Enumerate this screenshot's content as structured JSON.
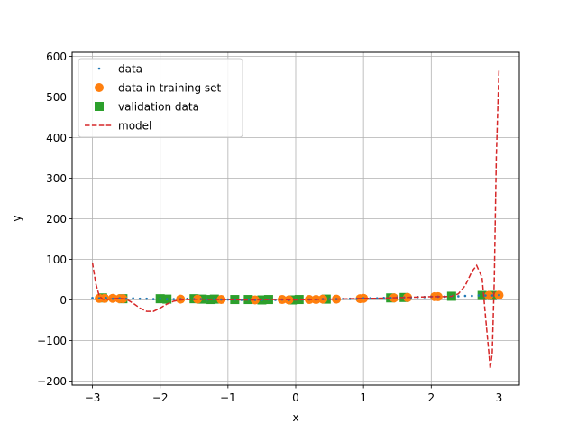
{
  "chart_data": {
    "type": "scatter",
    "xlabel": "x",
    "ylabel": "y",
    "xlim": [
      -3.3,
      3.3
    ],
    "ylim": [
      -210,
      610
    ],
    "x_ticks": [
      -3,
      -2,
      -1,
      0,
      1,
      2,
      3
    ],
    "x_tick_labels": [
      "−3",
      "−2",
      "−1",
      "0",
      "1",
      "2",
      "3"
    ],
    "y_ticks": [
      -200,
      -100,
      0,
      100,
      200,
      300,
      400,
      500,
      600
    ],
    "y_tick_labels": [
      "−200",
      "−100",
      "0",
      "100",
      "200",
      "300",
      "400",
      "500",
      "600"
    ],
    "grid": true,
    "legend_position": "top-left",
    "legend": [
      "data",
      "data in training set",
      "validation data",
      "model"
    ],
    "colors": {
      "data": "#1f77b4",
      "training": "#ff7f0e",
      "validation": "#2ca02c",
      "model": "#d62728"
    },
    "series": [
      {
        "name": "data",
        "style": "small-dots",
        "points": [
          [
            -3.0,
            5
          ],
          [
            -2.9,
            4
          ],
          [
            -2.8,
            5
          ],
          [
            -2.7,
            3
          ],
          [
            -2.6,
            4
          ],
          [
            -2.5,
            3
          ],
          [
            -2.4,
            4
          ],
          [
            -2.3,
            3
          ],
          [
            -2.2,
            3
          ],
          [
            -2.1,
            2
          ],
          [
            -2.0,
            3
          ],
          [
            -1.9,
            2
          ],
          [
            -1.8,
            2
          ],
          [
            -1.7,
            2
          ],
          [
            -1.6,
            3
          ],
          [
            -1.5,
            2
          ],
          [
            -1.4,
            2
          ],
          [
            -1.3,
            1
          ],
          [
            -1.2,
            2
          ],
          [
            -1.1,
            1
          ],
          [
            -1.0,
            1
          ],
          [
            -0.9,
            1
          ],
          [
            -0.8,
            0
          ],
          [
            -0.7,
            1
          ],
          [
            -0.6,
            0
          ],
          [
            -0.5,
            0
          ],
          [
            -0.4,
            1
          ],
          [
            -0.3,
            0
          ],
          [
            -0.2,
            1
          ],
          [
            -0.1,
            0
          ],
          [
            0.0,
            1
          ],
          [
            0.1,
            1
          ],
          [
            0.2,
            1
          ],
          [
            0.3,
            1
          ],
          [
            0.4,
            2
          ],
          [
            0.5,
            2
          ],
          [
            0.6,
            2
          ],
          [
            0.7,
            3
          ],
          [
            0.8,
            3
          ],
          [
            0.9,
            3
          ],
          [
            1.0,
            4
          ],
          [
            1.1,
            4
          ],
          [
            1.2,
            4
          ],
          [
            1.3,
            5
          ],
          [
            1.4,
            5
          ],
          [
            1.5,
            6
          ],
          [
            1.6,
            6
          ],
          [
            1.7,
            6
          ],
          [
            1.8,
            7
          ],
          [
            1.9,
            7
          ],
          [
            2.0,
            8
          ],
          [
            2.1,
            8
          ],
          [
            2.2,
            8
          ],
          [
            2.3,
            9
          ],
          [
            2.4,
            9
          ],
          [
            2.5,
            10
          ],
          [
            2.6,
            10
          ],
          [
            2.7,
            11
          ],
          [
            2.8,
            11
          ],
          [
            2.9,
            11
          ],
          [
            3.0,
            12
          ]
        ]
      },
      {
        "name": "data in training set",
        "style": "circle",
        "points": [
          [
            -2.9,
            4
          ],
          [
            -2.82,
            4
          ],
          [
            -2.7,
            4
          ],
          [
            -2.6,
            3
          ],
          [
            -2.55,
            3
          ],
          [
            -1.7,
            2
          ],
          [
            -1.45,
            2
          ],
          [
            -1.1,
            1
          ],
          [
            -0.6,
            0
          ],
          [
            -0.2,
            1
          ],
          [
            -0.1,
            0
          ],
          [
            0.2,
            1
          ],
          [
            0.3,
            1
          ],
          [
            0.4,
            2
          ],
          [
            0.6,
            2
          ],
          [
            0.95,
            3
          ],
          [
            1.0,
            4
          ],
          [
            1.45,
            5
          ],
          [
            1.65,
            6
          ],
          [
            2.05,
            8
          ],
          [
            2.1,
            8
          ],
          [
            2.85,
            11
          ],
          [
            3.0,
            12
          ]
        ]
      },
      {
        "name": "validation data",
        "style": "square",
        "points": [
          [
            -2.85,
            5
          ],
          [
            -2.55,
            3
          ],
          [
            -2.0,
            3
          ],
          [
            -1.9,
            2
          ],
          [
            -1.5,
            3
          ],
          [
            -1.38,
            2
          ],
          [
            -1.25,
            1
          ],
          [
            -1.2,
            2
          ],
          [
            -0.9,
            1
          ],
          [
            -0.7,
            1
          ],
          [
            -0.5,
            0
          ],
          [
            -0.4,
            1
          ],
          [
            -0.05,
            0
          ],
          [
            0.05,
            1
          ],
          [
            0.45,
            2
          ],
          [
            1.4,
            5
          ],
          [
            1.6,
            6
          ],
          [
            2.3,
            9
          ],
          [
            2.75,
            11
          ],
          [
            2.9,
            11
          ]
        ]
      },
      {
        "name": "model",
        "style": "dashed-line",
        "points": [
          [
            -3.0,
            92
          ],
          [
            -2.95,
            40
          ],
          [
            -2.9,
            10
          ],
          [
            -2.85,
            2
          ],
          [
            -2.8,
            1
          ],
          [
            -2.7,
            3
          ],
          [
            -2.6,
            4
          ],
          [
            -2.5,
            2
          ],
          [
            -2.4,
            -8
          ],
          [
            -2.3,
            -20
          ],
          [
            -2.2,
            -28
          ],
          [
            -2.1,
            -28
          ],
          [
            -2.0,
            -20
          ],
          [
            -1.9,
            -10
          ],
          [
            -1.8,
            -3
          ],
          [
            -1.7,
            0
          ],
          [
            -1.6,
            1
          ],
          [
            -1.4,
            2
          ],
          [
            -1.2,
            1
          ],
          [
            -1.0,
            1
          ],
          [
            -0.8,
            0
          ],
          [
            -0.6,
            0
          ],
          [
            -0.4,
            1
          ],
          [
            -0.2,
            1
          ],
          [
            0.0,
            0
          ],
          [
            0.2,
            1
          ],
          [
            0.4,
            2
          ],
          [
            0.6,
            2
          ],
          [
            0.8,
            3
          ],
          [
            1.0,
            4
          ],
          [
            1.2,
            4
          ],
          [
            1.4,
            5
          ],
          [
            1.6,
            6
          ],
          [
            1.8,
            7
          ],
          [
            2.0,
            8
          ],
          [
            2.2,
            8
          ],
          [
            2.3,
            9
          ],
          [
            2.4,
            15
          ],
          [
            2.5,
            35
          ],
          [
            2.6,
            70
          ],
          [
            2.67,
            85
          ],
          [
            2.75,
            55
          ],
          [
            2.8,
            -40
          ],
          [
            2.85,
            -130
          ],
          [
            2.87,
            -170
          ],
          [
            2.9,
            -130
          ],
          [
            2.93,
            50
          ],
          [
            2.96,
            350
          ],
          [
            3.0,
            570
          ]
        ]
      }
    ]
  }
}
